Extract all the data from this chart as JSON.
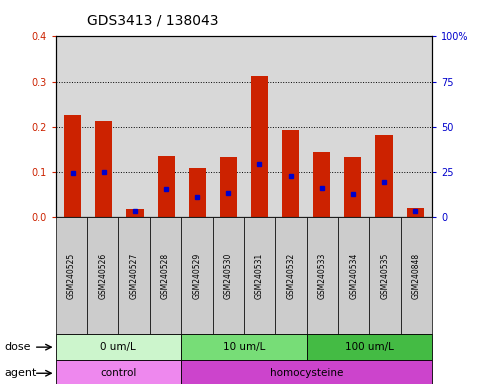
{
  "title": "GDS3413 / 138043",
  "samples": [
    "GSM240525",
    "GSM240526",
    "GSM240527",
    "GSM240528",
    "GSM240529",
    "GSM240530",
    "GSM240531",
    "GSM240532",
    "GSM240533",
    "GSM240534",
    "GSM240535",
    "GSM240848"
  ],
  "red_values": [
    0.225,
    0.212,
    0.018,
    0.135,
    0.108,
    0.133,
    0.312,
    0.192,
    0.143,
    0.132,
    0.182,
    0.02
  ],
  "blue_values": [
    0.098,
    0.1,
    0.013,
    0.062,
    0.045,
    0.052,
    0.118,
    0.09,
    0.065,
    0.05,
    0.077,
    0.013
  ],
  "ylim_left": [
    0,
    0.4
  ],
  "ylim_right": [
    0,
    100
  ],
  "yticks_left": [
    0,
    0.1,
    0.2,
    0.3,
    0.4
  ],
  "yticks_right": [
    0,
    25,
    50,
    75,
    100
  ],
  "dose_groups": [
    {
      "label": "0 um/L",
      "start": 0,
      "end": 4,
      "color": "#ccf5cc"
    },
    {
      "label": "10 um/L",
      "start": 4,
      "end": 8,
      "color": "#77dd77"
    },
    {
      "label": "100 um/L",
      "start": 8,
      "end": 12,
      "color": "#44bb44"
    }
  ],
  "agent_groups": [
    {
      "label": "control",
      "start": 0,
      "end": 4,
      "color": "#ee88ee"
    },
    {
      "label": "homocysteine",
      "start": 4,
      "end": 12,
      "color": "#cc44cc"
    }
  ],
  "bar_color": "#cc2200",
  "marker_color": "#0000cc",
  "plot_bg": "#d8d8d8",
  "grid_color": "#000000",
  "left_tick_color": "#cc2200",
  "right_tick_color": "#0000cc",
  "title_fontsize": 10,
  "tick_fontsize": 7,
  "label_fontsize": 7.5,
  "row_label_fontsize": 8
}
